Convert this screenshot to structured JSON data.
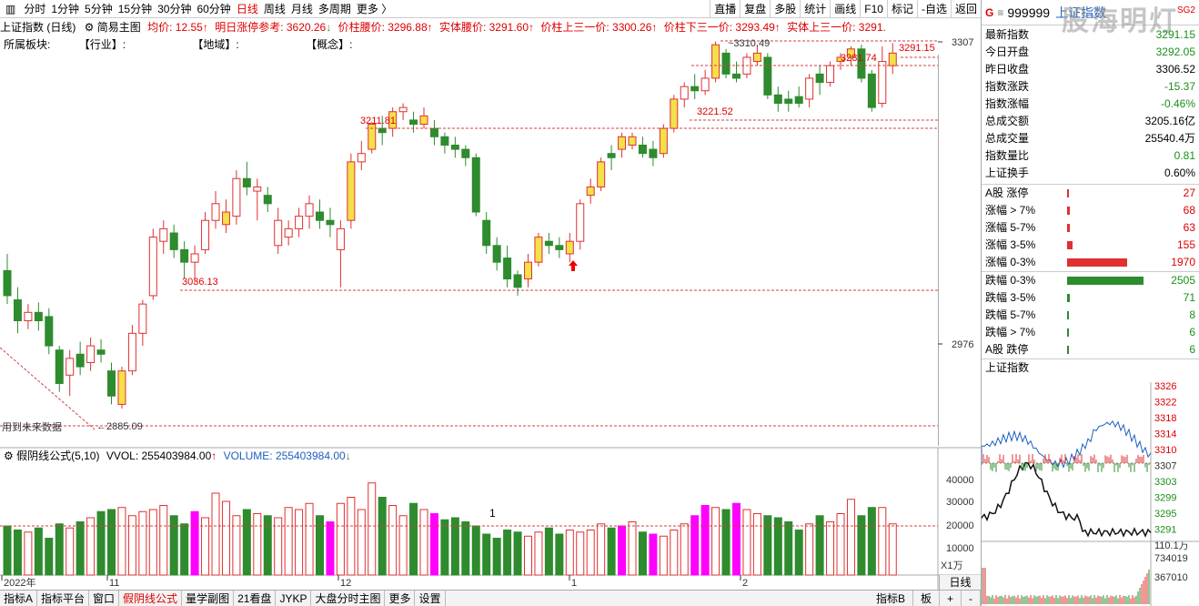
{
  "toolbar": {
    "periods": [
      "分时",
      "1分钟",
      "5分钟",
      "15分钟",
      "30分钟",
      "60分钟",
      "日线",
      "周线",
      "月线",
      "多周期",
      "更多 〉"
    ],
    "active_period": "日线",
    "right_buttons": [
      "直播",
      "复盘",
      "多股",
      "统计",
      "画线",
      "F10",
      "标记",
      "-自选",
      "返回"
    ]
  },
  "header": {
    "title": "上证指数 (日线)",
    "main_chart": "简易主图",
    "avg_price": "均价: 12.55",
    "next_limit": "明日涨停参考: 3620.26",
    "waist": "价柱腰价: 3296.88",
    "body_waist": "实体腰价: 3291.60",
    "upper_third": "价柱上三一价: 3300.26",
    "lower_third": "价柱下三一价: 3293.49",
    "body_upper": "实体上三一价: 3291.",
    "sector_label": "所属板块:",
    "industry": "【行业】:",
    "region": "【地域】:",
    "concept": "【概念】:"
  },
  "chart_data": {
    "type": "candlestick",
    "y_ticks": [
      "3307",
      "2976"
    ],
    "price_labels": [
      "3310.49",
      "3291.15",
      "3281.74",
      "3221.52",
      "3211.81",
      "3036.13",
      "2885.09"
    ],
    "future_note": "用到未来数据",
    "x_labels": [
      "2022年",
      "11",
      "12",
      "1",
      "2"
    ],
    "volume_title": "假阴线公式(5,10)",
    "vvol": "VVOL: 255403984.00",
    "volume_value": "VOLUME: 255403984.00",
    "volume_ticks": [
      "40000",
      "30000",
      "20000",
      "10000"
    ],
    "volume_unit": "X1万",
    "marker": "1"
  },
  "bottom_tabs": [
    "指标A",
    "指标平台",
    "窗口",
    "假阴线公式",
    "量学副图",
    "21看盘",
    "JYKP",
    "大盘分时主图",
    "更多",
    "设置"
  ],
  "bottom_right": [
    "指标B",
    "板",
    "+",
    "-"
  ],
  "period_select": "日线",
  "quote": {
    "code": "999999",
    "name": "上证指数",
    "tag": "SG2",
    "watermark": "股海明灯",
    "rows": [
      {
        "k": "最新指数",
        "v": "3291.15",
        "c": "green"
      },
      {
        "k": "今日开盘",
        "v": "3292.05",
        "c": "green"
      },
      {
        "k": "昨日收盘",
        "v": "3306.52",
        "c": "black"
      },
      {
        "k": "指数涨跌",
        "v": "-15.37",
        "c": "green"
      },
      {
        "k": "指数涨幅",
        "v": "-0.46%",
        "c": "green"
      },
      {
        "k": "总成交额",
        "v": "3205.16亿",
        "c": "black"
      },
      {
        "k": "总成交量",
        "v": "25540.4万",
        "c": "black"
      },
      {
        "k": "指数量比",
        "v": "0.81",
        "c": "green"
      },
      {
        "k": "上证换手",
        "v": "0.60%",
        "c": "black"
      }
    ],
    "up_rows": [
      {
        "k": "A股 涨停",
        "v": "27",
        "w": 0.01
      },
      {
        "k": "涨幅 > 7%",
        "v": "68",
        "w": 0.03
      },
      {
        "k": "涨幅 5-7%",
        "v": "63",
        "w": 0.03
      },
      {
        "k": "涨幅 3-5%",
        "v": "155",
        "w": 0.07
      },
      {
        "k": "涨幅 0-3%",
        "v": "1970",
        "w": 0.79
      }
    ],
    "down_rows": [
      {
        "k": "跌幅 0-3%",
        "v": "2505",
        "w": 1.0
      },
      {
        "k": "跌幅 3-5%",
        "v": "71",
        "w": 0.03
      },
      {
        "k": "跌幅 5-7%",
        "v": "8",
        "w": 0.01
      },
      {
        "k": "跌幅 > 7%",
        "v": "6",
        "w": 0.01
      },
      {
        "k": "A股 跌停",
        "v": "6",
        "w": 0.01
      }
    ],
    "mini_title": "上证指数",
    "mini_ticks": [
      "3326",
      "3322",
      "3318",
      "3314",
      "3310",
      "3307",
      "3303",
      "3299",
      "3295",
      "3291"
    ],
    "mini_vol": [
      "110.1万",
      "734019",
      "367010"
    ]
  },
  "colors": {
    "up": "#e03030",
    "down": "#2e8b2e",
    "yellow": "#f4e04a",
    "magenta": "#ff00ff"
  }
}
